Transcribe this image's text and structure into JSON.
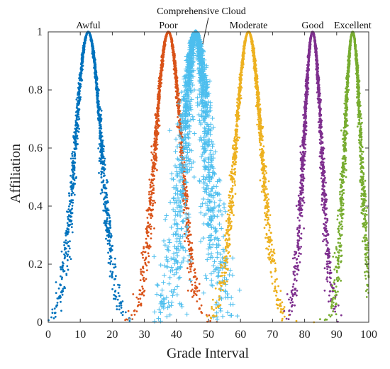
{
  "chart_data": {
    "type": "scatter",
    "title": "",
    "xlabel": "Grade Interval",
    "ylabel": "Affiliation",
    "xlim": [
      0,
      100
    ],
    "ylim": [
      0,
      1
    ],
    "xticks": [
      0,
      10,
      20,
      30,
      40,
      50,
      60,
      70,
      80,
      90,
      100
    ],
    "yticks": [
      0,
      0.2,
      0.4,
      0.6,
      0.8,
      1
    ],
    "ytick_labels": [
      "0",
      "0.2",
      "0.4",
      "0.6",
      "0.8",
      "1"
    ],
    "grid": false,
    "series": [
      {
        "name": "Awful",
        "Ex": 12.5,
        "En": 4.1,
        "He": 0.35,
        "marker": "dot",
        "color": "#0072bd"
      },
      {
        "name": "Poor",
        "Ex": 37.5,
        "En": 4.1,
        "He": 0.35,
        "marker": "dot",
        "color": "#d95319"
      },
      {
        "name": "Comprehensive Cloud",
        "Ex": 46,
        "En": 3.7,
        "He": 1.2,
        "marker": "plus",
        "color": "#4dbeee"
      },
      {
        "name": "Moderate",
        "Ex": 62.5,
        "En": 4.1,
        "He": 0.35,
        "marker": "dot",
        "color": "#edb120"
      },
      {
        "name": "Good",
        "Ex": 82.5,
        "En": 2.8,
        "He": 0.3,
        "marker": "dot",
        "color": "#7e2f8e"
      },
      {
        "name": "Excellent",
        "Ex": 95,
        "En": 2.6,
        "He": 0.3,
        "marker": "dot",
        "color": "#77ac30"
      }
    ]
  }
}
